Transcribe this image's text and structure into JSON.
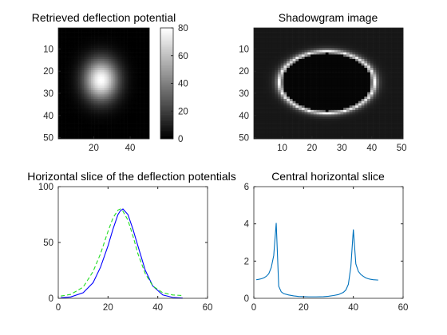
{
  "chart_data": [
    {
      "type": "heatmap",
      "title": "Retrieved deflection potential",
      "colormap": "gray",
      "xlim": [
        1,
        50
      ],
      "ylim": [
        1,
        50
      ],
      "xticks": [
        "20",
        "40"
      ],
      "yticks": [
        "10",
        "20",
        "30",
        "40",
        "50"
      ],
      "colorbar": {
        "range": [
          0,
          80
        ],
        "ticks": [
          "0",
          "20",
          "40",
          "60",
          "80"
        ]
      },
      "data_model": {
        "shape": "gaussian",
        "center": [
          24,
          24
        ],
        "peak": 80,
        "sigma": 6.5
      }
    },
    {
      "type": "heatmap",
      "title": "Shadowgram image",
      "colormap": "gray",
      "xlim": [
        1,
        50
      ],
      "ylim": [
        1,
        50
      ],
      "xticks": [
        "10",
        "20",
        "30",
        "40",
        "50"
      ],
      "yticks": [
        "10",
        "20",
        "30",
        "40",
        "50"
      ],
      "data_model": {
        "shape": "bright ellipse ring",
        "center": [
          25,
          25
        ],
        "radius_x": 16,
        "radius_y": 14
      }
    },
    {
      "type": "line",
      "title": "Horizontal slice of the deflection potentials",
      "xlim": [
        0,
        60
      ],
      "ylim": [
        0,
        100
      ],
      "xticks": [
        "0",
        "20",
        "40",
        "60"
      ],
      "yticks": [
        "0",
        "50",
        "100"
      ],
      "series": [
        {
          "color": "#0000ff",
          "style": "solid",
          "x": [
            1,
            5,
            10,
            14,
            17,
            20,
            22,
            24,
            25,
            26,
            28,
            30,
            32,
            35,
            38,
            42,
            46,
            50
          ],
          "y": [
            0.5,
            1.2,
            5,
            14,
            28,
            47,
            62,
            75,
            78.5,
            80,
            75,
            62,
            47,
            25,
            11,
            3,
            0.8,
            0.2
          ]
        },
        {
          "color": "#22dd22",
          "style": "dashed",
          "x": [
            1,
            5,
            10,
            14,
            17,
            20,
            22,
            24,
            25,
            26,
            28,
            30,
            32,
            35,
            38,
            42,
            46,
            50
          ],
          "y": [
            2,
            3.5,
            10,
            24,
            40,
            60,
            72,
            79,
            80,
            78,
            70,
            56,
            40,
            22,
            11,
            5,
            3,
            2.5
          ]
        }
      ]
    },
    {
      "type": "line",
      "title": "Central horizontal slice",
      "xlim": [
        0,
        60
      ],
      "ylim": [
        0,
        6
      ],
      "xticks": [
        "0",
        "20",
        "40",
        "60"
      ],
      "yticks": [
        "0",
        "2",
        "4",
        "6"
      ],
      "series": [
        {
          "color": "#0072bd",
          "style": "solid",
          "x": [
            1,
            2,
            3,
            4,
            5,
            6,
            7,
            8,
            9,
            10,
            11,
            12,
            14,
            16,
            18,
            20,
            22,
            25,
            28,
            30,
            32,
            34,
            36,
            37,
            38,
            39,
            40,
            41,
            42,
            43,
            44,
            45,
            46,
            47,
            48,
            50
          ],
          "y": [
            1.0,
            1.02,
            1.05,
            1.1,
            1.18,
            1.32,
            1.65,
            2.3,
            4.05,
            0.65,
            0.35,
            0.25,
            0.18,
            0.13,
            0.1,
            0.09,
            0.08,
            0.08,
            0.09,
            0.11,
            0.15,
            0.2,
            0.32,
            0.45,
            0.75,
            1.7,
            3.7,
            1.85,
            1.45,
            1.28,
            1.18,
            1.1,
            1.05,
            1.02,
            1.0,
            0.98
          ]
        }
      ]
    }
  ]
}
